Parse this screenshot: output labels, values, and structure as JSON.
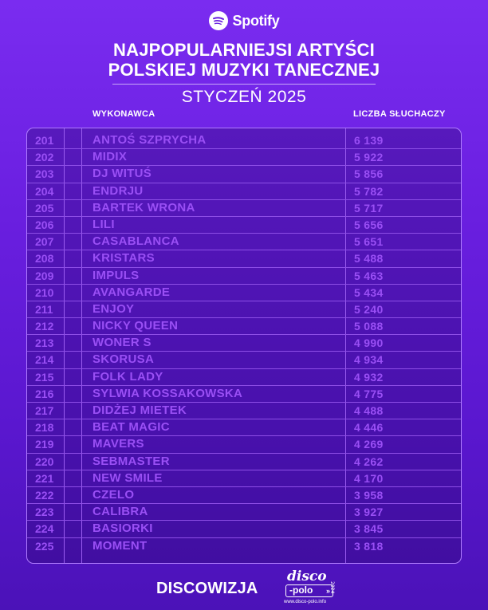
{
  "brand": {
    "name": "Spotify",
    "icon": "spotify-logo-icon"
  },
  "title": {
    "line1": "NAJPOPULARNIEJSI ARTYŚCI",
    "line2": "POLSKIEJ MUZYKI TANECZNEJ"
  },
  "subtitle": "STYCZEŃ 2025",
  "columns": {
    "artist": "WYKONAWCA",
    "listeners": "LICZBA SŁUCHACZY"
  },
  "rows": [
    {
      "rank": "201",
      "artist": "ANTOŚ SZPRYCHA",
      "listeners": "6 139"
    },
    {
      "rank": "202",
      "artist": "MIDIX",
      "listeners": "5 922"
    },
    {
      "rank": "203",
      "artist": "DJ WITUŚ",
      "listeners": "5 856"
    },
    {
      "rank": "204",
      "artist": "ENDRJU",
      "listeners": "5 782"
    },
    {
      "rank": "205",
      "artist": "BARTEK WRONA",
      "listeners": "5 717"
    },
    {
      "rank": "206",
      "artist": "LILI",
      "listeners": "5 656"
    },
    {
      "rank": "207",
      "artist": "CASABLANCA",
      "listeners": "5 651"
    },
    {
      "rank": "208",
      "artist": "KRISTARS",
      "listeners": "5 488"
    },
    {
      "rank": "209",
      "artist": "IMPULS",
      "listeners": "5 463"
    },
    {
      "rank": "210",
      "artist": "AVANGARDE",
      "listeners": "5 434"
    },
    {
      "rank": "211",
      "artist": "ENJOY",
      "listeners": "5 240"
    },
    {
      "rank": "212",
      "artist": "NICKY QUEEN",
      "listeners": "5 088"
    },
    {
      "rank": "213",
      "artist": "WONER S",
      "listeners": "4 990"
    },
    {
      "rank": "214",
      "artist": "SKORUSA",
      "listeners": "4 934"
    },
    {
      "rank": "215",
      "artist": "FOLK LADY",
      "listeners": "4 932"
    },
    {
      "rank": "216",
      "artist": "SYLWIA KOSSAKOWSKA",
      "listeners": "4 775"
    },
    {
      "rank": "217",
      "artist": "DIDŻEJ MIETEK",
      "listeners": "4 488"
    },
    {
      "rank": "218",
      "artist": "BEAT MAGIC",
      "listeners": "4 446"
    },
    {
      "rank": "219",
      "artist": "MAVERS",
      "listeners": "4 269"
    },
    {
      "rank": "220",
      "artist": "SEBMASTER",
      "listeners": "4 262"
    },
    {
      "rank": "221",
      "artist": "NEW SMILE",
      "listeners": "4 170"
    },
    {
      "rank": "222",
      "artist": "CZELO",
      "listeners": "3 958"
    },
    {
      "rank": "223",
      "artist": "CALIBRA",
      "listeners": "3 927"
    },
    {
      "rank": "224",
      "artist": "BASIORKI",
      "listeners": "3 845"
    },
    {
      "rank": "225",
      "artist": "MOMENT",
      "listeners": "3 818"
    }
  ],
  "footer": {
    "discowizja": "DISCOWIZJA",
    "disco_polo": {
      "disco": "disco",
      "polo": "-polo",
      "url": "www.disco-polo.info",
      "year": "2024",
      "icon": "double-chevron-right-icon"
    }
  },
  "colors": {
    "background": "#6a1fe0",
    "cell_text": "#9a4ff5",
    "table_border": "#b07cff"
  }
}
